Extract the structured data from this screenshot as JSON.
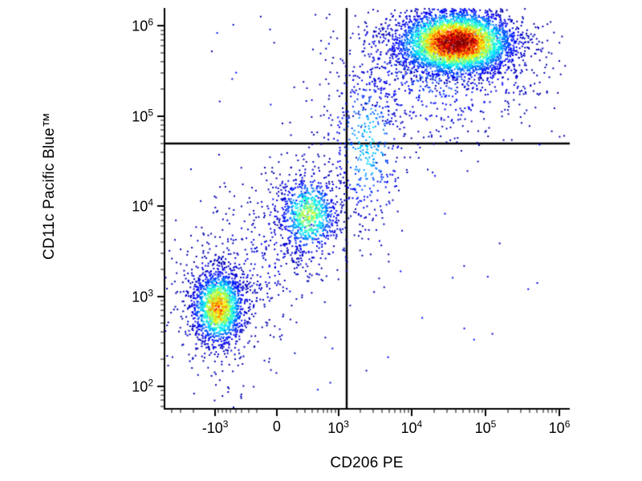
{
  "figure": {
    "background": "#ffffff",
    "axis_color": "#000000",
    "gate_color": "#000000"
  },
  "chart_data": {
    "type": "scatter",
    "subtype": "flow_cytometry_pseudocolor_dot_plot",
    "title": "",
    "xlabel": "CD206 PE",
    "ylabel": "CD11c Pacific Blue™",
    "grid": false,
    "legend": "none",
    "colormap": "jet",
    "xlim": [
      -5000,
      1500000
    ],
    "ylim": [
      60,
      1600000
    ],
    "x_scale": {
      "type": "asinh",
      "cofactor": 300,
      "zero_frac": 0.277,
      "unit_frac": 0.0792
    },
    "y_scale": {
      "type": "log10",
      "min_exp": 1.75,
      "max_exp": 6.2
    },
    "x_ticks": [
      {
        "value": -1000,
        "base": "-10",
        "exp": "3"
      },
      {
        "value": 0,
        "base": "0",
        "exp": ""
      },
      {
        "value": 1000,
        "base": "10",
        "exp": "3"
      },
      {
        "value": 10000,
        "base": "10",
        "exp": "4"
      },
      {
        "value": 100000,
        "base": "10",
        "exp": "5"
      },
      {
        "value": 1000000,
        "base": "10",
        "exp": "6"
      }
    ],
    "y_ticks": [
      {
        "value": 100,
        "base": "10",
        "exp": "2"
      },
      {
        "value": 1000,
        "base": "10",
        "exp": "3"
      },
      {
        "value": 10000,
        "base": "10",
        "exp": "4"
      },
      {
        "value": 100000,
        "base": "10",
        "exp": "5"
      },
      {
        "value": 1000000,
        "base": "10",
        "exp": "6"
      }
    ],
    "quadrant_gates": {
      "x": 1300,
      "y": 50000
    },
    "populations": [
      {
        "id": "lower-left-halo",
        "center": [
          -900,
          800
        ],
        "sigma": [
          0.065,
          0.095
        ],
        "n": 400,
        "peak": 0.18
      },
      {
        "id": "low-mid-diagonal-scatter",
        "center": [
          -200,
          2500
        ],
        "sigma": [
          0.07,
          0.09
        ],
        "n": 180,
        "peak": 0.13
      },
      {
        "id": "middle-halo",
        "center": [
          300,
          7000
        ],
        "sigma": [
          0.085,
          0.1
        ],
        "n": 280,
        "peak": 0.15
      },
      {
        "id": "bridge-to-upper-right",
        "center": [
          2500,
          50000
        ],
        "sigma": [
          0.05,
          0.11
        ],
        "n": 420,
        "peak": 0.32
      },
      {
        "id": "upper-right-halo",
        "center": [
          25000,
          400000
        ],
        "sigma": [
          0.14,
          0.1
        ],
        "n": 850,
        "peak": 0.22
      },
      {
        "id": "sparse-background",
        "uniform": true,
        "n": 60,
        "peak": 0.1
      },
      {
        "id": "lower-left-core",
        "center": [
          -900,
          750
        ],
        "sigma": [
          0.032,
          0.046
        ],
        "n": 1500,
        "peak": 0.75
      },
      {
        "id": "middle-core",
        "center": [
          350,
          8000
        ],
        "sigma": [
          0.036,
          0.05
        ],
        "n": 750,
        "peak": 0.55
      },
      {
        "id": "upper-right-core",
        "center": [
          40000,
          650000
        ],
        "sigma": [
          0.072,
          0.04
        ],
        "n": 4200,
        "peak": 1.02
      }
    ],
    "render": {
      "seed": 1337,
      "point_size": 2
    }
  }
}
